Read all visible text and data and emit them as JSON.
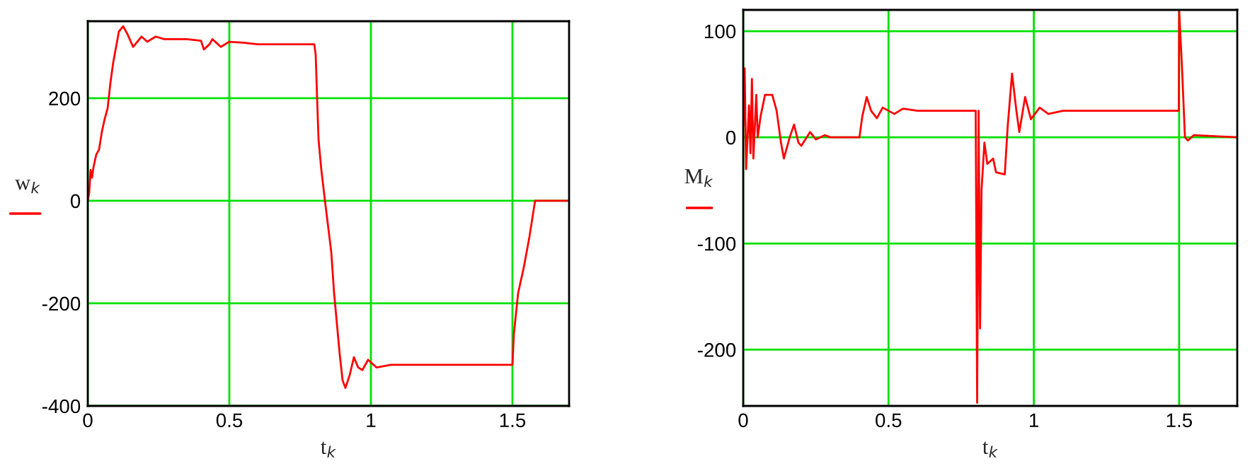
{
  "chart_data": [
    {
      "type": "line",
      "xlabel": "t$_{k}$",
      "ylabel": "w$_{k}$",
      "xlim": [
        0,
        1.7
      ],
      "ylim": [
        -400,
        350
      ],
      "xticks": [
        0,
        0.5,
        1,
        1.5
      ],
      "yticks": [
        -400,
        -200,
        0,
        200
      ],
      "grid": true,
      "legend": false,
      "series": [
        {
          "color": "#ff0000",
          "x": [
            0,
            0.005,
            0.01,
            0.015,
            0.02,
            0.03,
            0.04,
            0.05,
            0.06,
            0.07,
            0.08,
            0.09,
            0.1,
            0.11,
            0.125,
            0.14,
            0.16,
            0.19,
            0.21,
            0.24,
            0.27,
            0.35,
            0.4,
            0.41,
            0.43,
            0.44,
            0.47,
            0.5,
            0.55,
            0.6,
            0.8,
            0.805,
            0.81,
            0.815,
            0.825,
            0.84,
            0.86,
            0.87,
            0.88,
            0.89,
            0.9,
            0.91,
            0.925,
            0.94,
            0.955,
            0.97,
            0.99,
            1.02,
            1.07,
            1.1,
            1.499,
            1.5,
            1.505,
            1.52,
            1.54,
            1.56,
            1.58,
            1.7
          ],
          "values": [
            0,
            15,
            60,
            45,
            65,
            90,
            100,
            135,
            160,
            180,
            230,
            270,
            300,
            330,
            340,
            325,
            300,
            320,
            310,
            320,
            315,
            315,
            312,
            295,
            305,
            315,
            300,
            310,
            308,
            305,
            305,
            285,
            200,
            120,
            60,
            -10,
            -100,
            -180,
            -240,
            -300,
            -350,
            -365,
            -340,
            -305,
            -325,
            -330,
            -310,
            -325,
            -320,
            -320,
            -320,
            -320,
            -260,
            -180,
            -130,
            -70,
            0,
            0
          ]
        }
      ]
    },
    {
      "type": "line",
      "xlabel": "t$_{k}$",
      "ylabel": "M$_{k}$",
      "xlim": [
        0,
        1.7
      ],
      "ylim": [
        -253,
        120
      ],
      "xticks": [
        0,
        0.5,
        1,
        1.5
      ],
      "yticks": [
        {
          "value": -200,
          "label": "-200"
        },
        {
          "value": -100,
          "label": "-100"
        },
        0,
        100
      ],
      "grid": true,
      "legend": false,
      "series": [
        {
          "color": "#ff0000",
          "x": [
            0,
            0.005,
            0.01,
            0.015,
            0.02,
            0.025,
            0.03,
            0.035,
            0.045,
            0.05,
            0.06,
            0.075,
            0.1,
            0.115,
            0.13,
            0.14,
            0.16,
            0.175,
            0.19,
            0.2,
            0.23,
            0.25,
            0.28,
            0.3,
            0.4,
            0.41,
            0.425,
            0.44,
            0.46,
            0.48,
            0.5,
            0.52,
            0.55,
            0.6,
            0.8,
            0.805,
            0.81,
            0.815,
            0.82,
            0.83,
            0.84,
            0.86,
            0.87,
            0.9,
            0.91,
            0.925,
            0.94,
            0.95,
            0.97,
            0.99,
            1.02,
            1.05,
            1.1,
            1.2,
            1.499,
            1.5,
            1.51,
            1.52,
            1.53,
            1.55,
            1.7
          ],
          "values": [
            10,
            65,
            -30,
            0,
            30,
            -15,
            55,
            -20,
            40,
            0,
            20,
            40,
            40,
            25,
            -5,
            -20,
            0,
            12,
            -5,
            -8,
            5,
            -2,
            2,
            0,
            0,
            20,
            38,
            25,
            18,
            28,
            25,
            22,
            27,
            25,
            25,
            -250,
            25,
            -180,
            -50,
            -5,
            -25,
            -20,
            -33,
            -35,
            10,
            60,
            25,
            5,
            38,
            17,
            28,
            22,
            25,
            25,
            25,
            120,
            65,
            0,
            -3,
            2,
            0
          ]
        }
      ]
    }
  ]
}
